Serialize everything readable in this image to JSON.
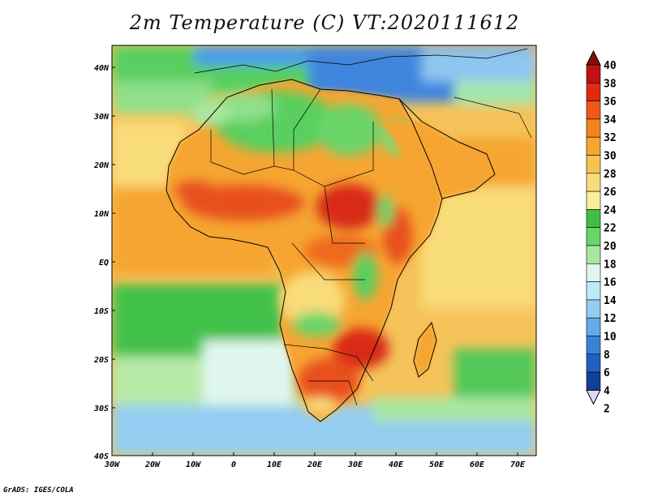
{
  "title": "2m Temperature (C) VT:2020111612",
  "credit": "GrADS: IGES/COLA",
  "map": {
    "lat_labels": [
      "40N",
      "30N",
      "20N",
      "10N",
      "EQ",
      "10S",
      "20S",
      "30S",
      "40S"
    ],
    "lon_labels": [
      "30W",
      "20W",
      "10W",
      "0",
      "10E",
      "20E",
      "30E",
      "40E",
      "50E",
      "60E",
      "70E"
    ],
    "lon_range": [
      -30,
      75
    ],
    "lat_range": [
      -40,
      45
    ]
  },
  "colorbar": {
    "labels": [
      "40",
      "38",
      "36",
      "34",
      "32",
      "30",
      "28",
      "26",
      "24",
      "22",
      "20",
      "18",
      "16",
      "14",
      "12",
      "10",
      "8",
      "6",
      "4",
      "2"
    ],
    "colors": [
      "#8a0a0a",
      "#c01010",
      "#e02a12",
      "#ee5a18",
      "#f2821e",
      "#f6a530",
      "#f8c253",
      "#f9dc7a",
      "#f9ee9c",
      "#3fbf45",
      "#6ad469",
      "#a8e7a0",
      "#dff7ef",
      "#bfe9f7",
      "#93cdf1",
      "#65aaea",
      "#3a82d8",
      "#2060c0",
      "#124098",
      "#0a1c6a"
    ]
  }
}
